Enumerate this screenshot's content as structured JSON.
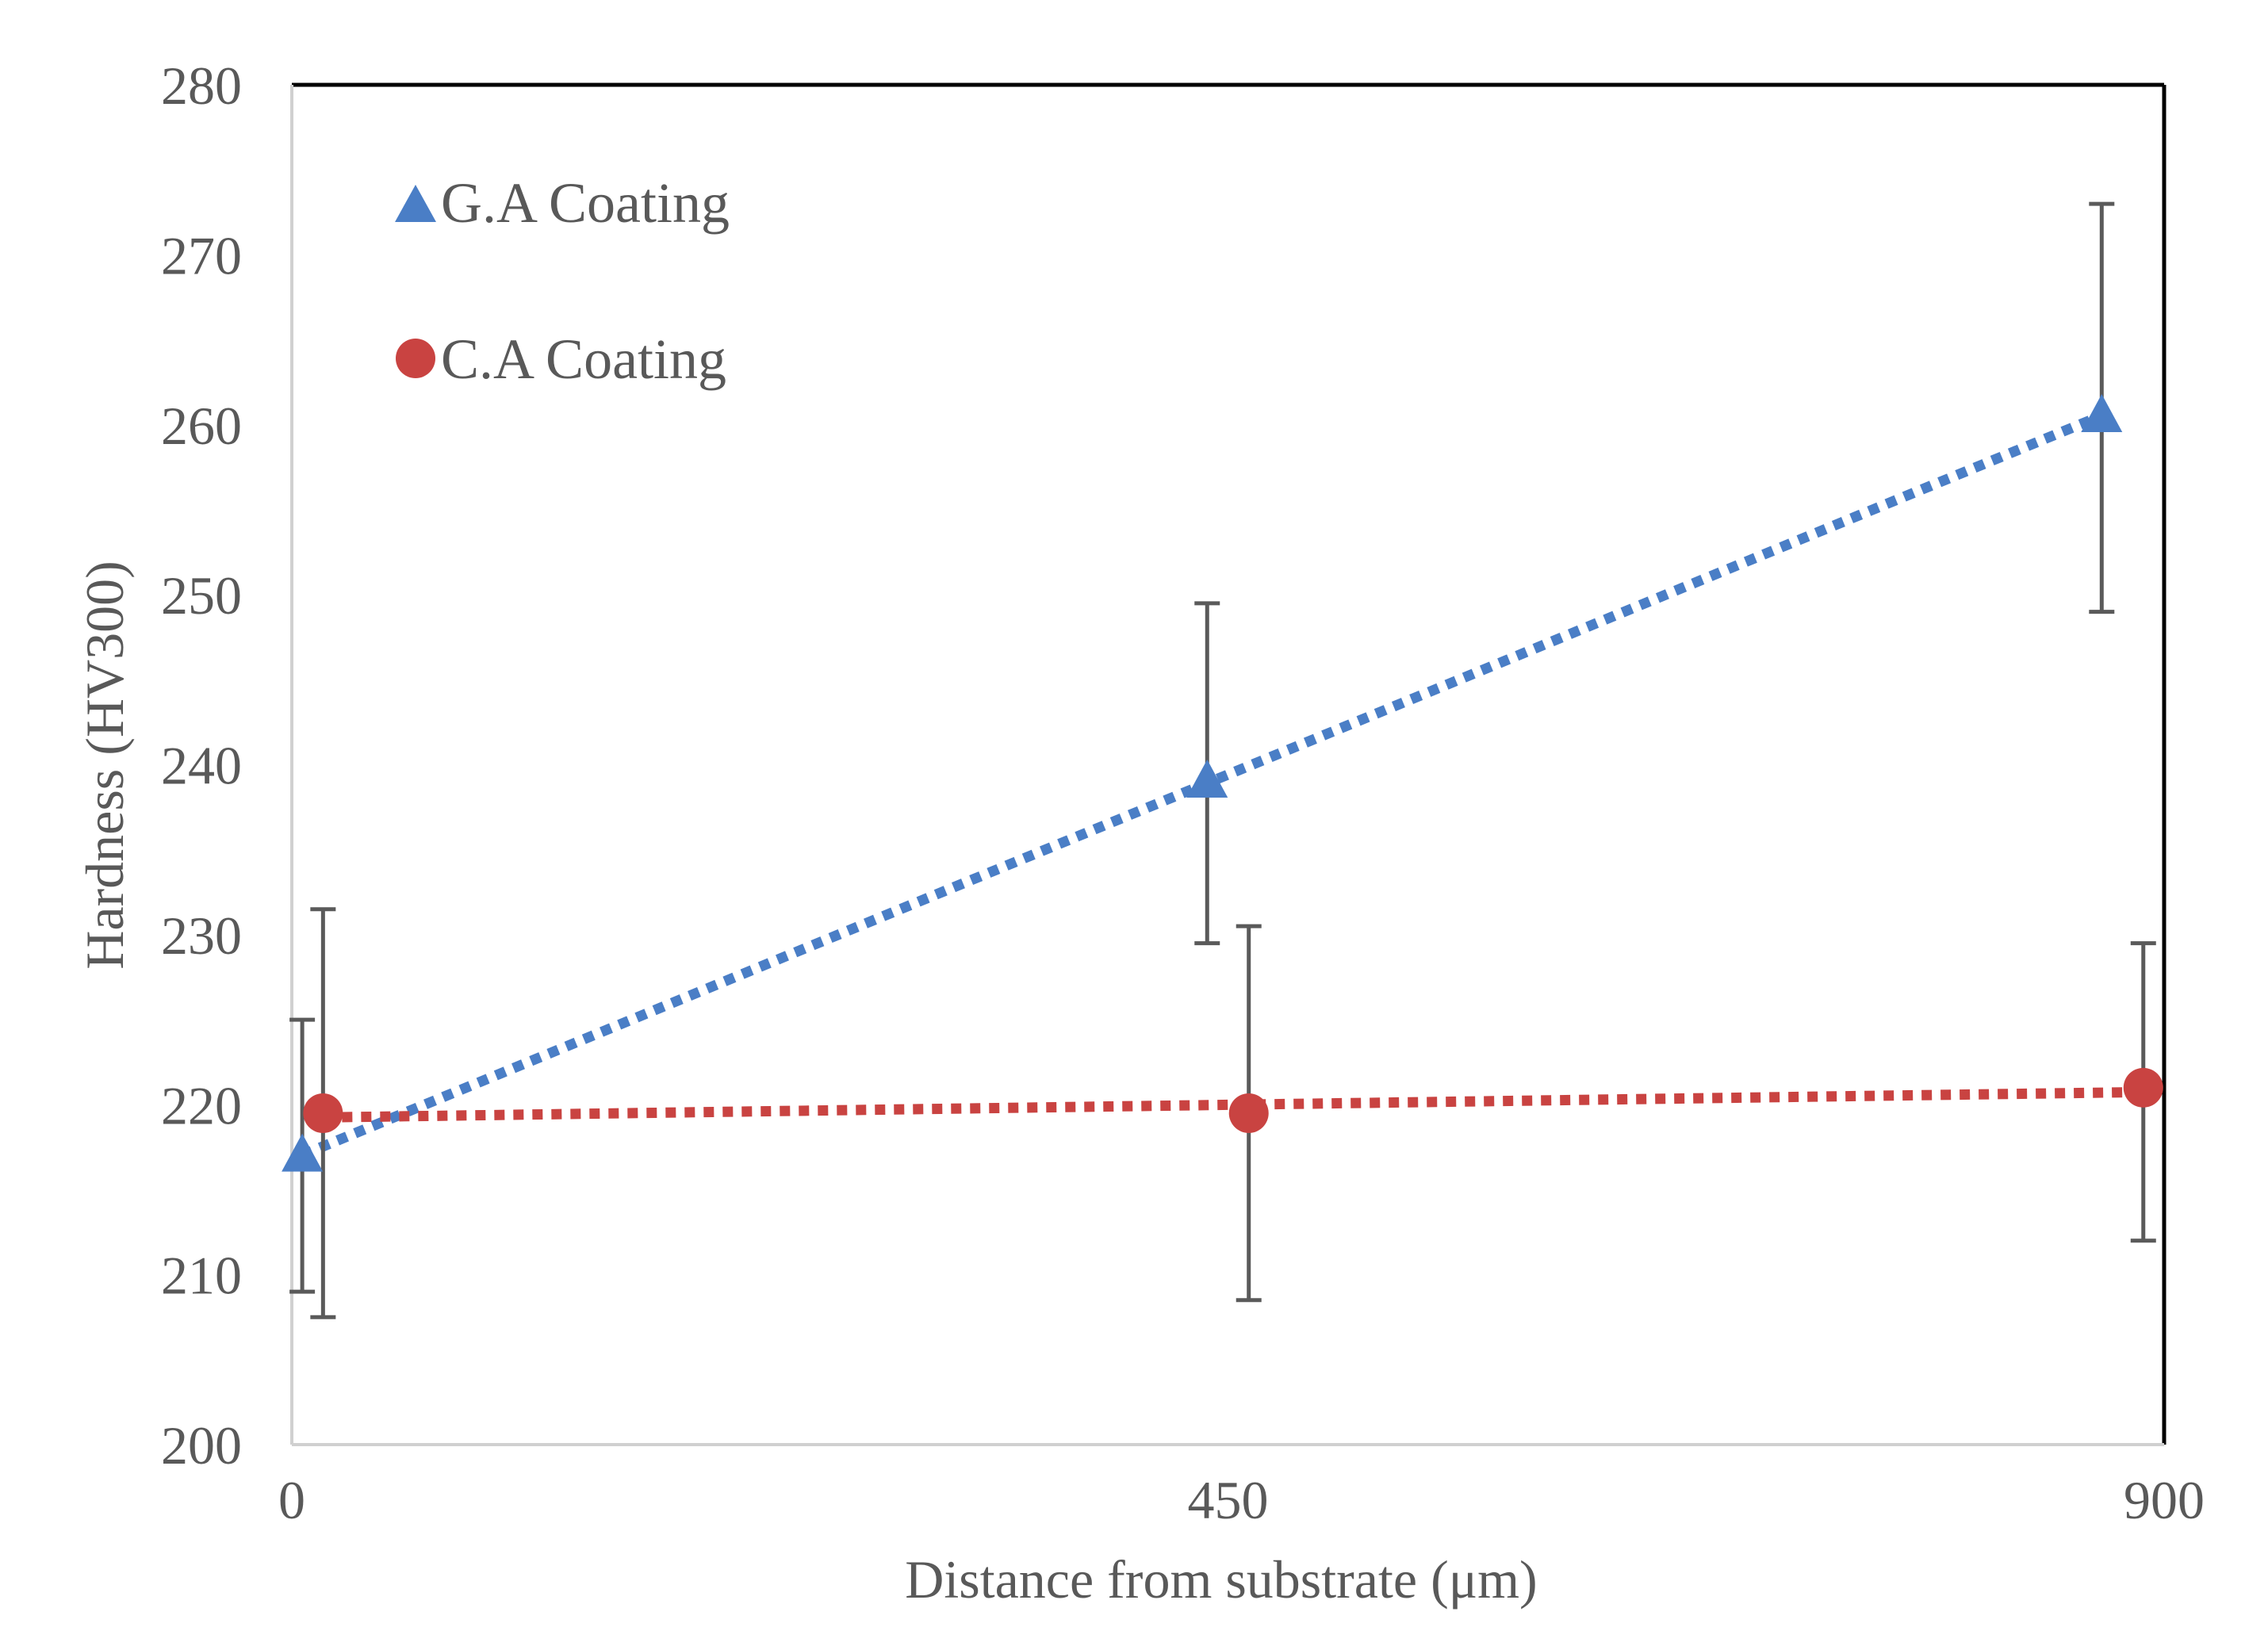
{
  "chart_data": {
    "type": "scatter",
    "title": "",
    "xlabel": "Distance from substrate (μm)",
    "ylabel": "Hardness (HV300)",
    "xlim": [
      0,
      900
    ],
    "ylim": [
      200,
      280
    ],
    "x_ticks": [
      0,
      450,
      900
    ],
    "x_tick_labels": [
      "0",
      "450",
      "900"
    ],
    "y_ticks": [
      200,
      210,
      220,
      230,
      240,
      250,
      260,
      270,
      280
    ],
    "y_tick_labels": [
      "200",
      "210",
      "220",
      "230",
      "240",
      "250",
      "260",
      "270",
      "280"
    ],
    "legend_position": "top-left",
    "series": [
      {
        "name": "G.A Coating",
        "marker": "triangle",
        "color": "#4A7EC6",
        "trendline": "linear-dotted",
        "x": [
          5,
          440,
          870
        ],
        "y": [
          217,
          239,
          260.5
        ],
        "err_low": [
          209,
          229.5,
          249
        ],
        "err_high": [
          225,
          249.5,
          273
        ]
      },
      {
        "name": "C.A Coating",
        "marker": "circle",
        "color": "#C94341",
        "trendline": "linear-dotted",
        "x": [
          15,
          460,
          890
        ],
        "y": [
          219.5,
          219.5,
          221
        ],
        "err_low": [
          207.5,
          208.5,
          212
        ],
        "err_high": [
          231.5,
          230.5,
          229.5
        ]
      }
    ]
  }
}
